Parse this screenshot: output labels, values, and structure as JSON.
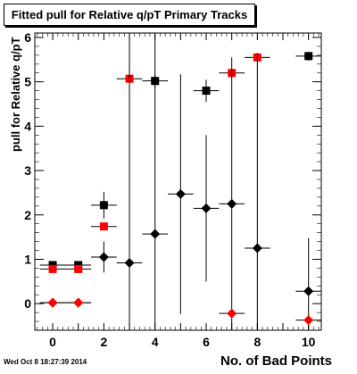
{
  "title": "Fitted pull for Relative q/pT Primary Tracks",
  "timestamp": "Wed Oct  8 18:27:39 2014",
  "chart_data": {
    "type": "scatter",
    "title": "Fitted pull for Relative q/pT Primary Tracks",
    "xlabel": "No. of Bad Points",
    "ylabel": "pull for Relative q/pT",
    "xlim": [
      -0.7,
      10.5
    ],
    "ylim": [
      -0.6,
      6.1
    ],
    "x_ticks": [
      0,
      2,
      4,
      6,
      8,
      10
    ],
    "y_ticks": [
      0,
      1,
      2,
      3,
      4,
      5,
      6
    ],
    "grid": false,
    "legend": "none",
    "series": [
      {
        "color": "#000000",
        "marker": "square",
        "points": [
          {
            "x": 0,
            "y": 0.87,
            "err": 0.05
          },
          {
            "x": 1,
            "y": 0.87,
            "err": 0.05
          },
          {
            "x": 2,
            "y": 2.22,
            "err": 0.3
          },
          {
            "x": 4,
            "y": 5.02,
            "err": 0.15
          },
          {
            "x": 6,
            "y": 4.8,
            "err": 0.25
          },
          {
            "x": 10,
            "y": 5.58,
            "err": 0.1
          }
        ]
      },
      {
        "color": "#ff0000",
        "marker": "square",
        "points": [
          {
            "x": 0,
            "y": 0.78,
            "err": 0.05
          },
          {
            "x": 1,
            "y": 0.78,
            "err": 0.05
          },
          {
            "x": 2,
            "y": 1.74,
            "err": 0.05
          },
          {
            "x": 3,
            "y": 5.07,
            "err": 0.05
          },
          {
            "x": 7,
            "y": 5.2,
            "err": 0.05
          },
          {
            "x": 8,
            "y": 5.55,
            "err": 0.05
          }
        ]
      },
      {
        "color": "#000000",
        "marker": "diamond",
        "points": [
          {
            "x": 0,
            "y": 0.02,
            "err": 0.02
          },
          {
            "x": 1,
            "y": 0.02,
            "err": 0.02
          },
          {
            "x": 2,
            "y": 1.05,
            "err": 0.35
          },
          {
            "x": 3,
            "y": 0.92,
            "err": 5.2
          },
          {
            "x": 4,
            "y": 1.57,
            "err": 4.6
          },
          {
            "x": 5,
            "y": 2.47,
            "err": 2.7
          },
          {
            "x": 6,
            "y": 2.15,
            "err": 1.65
          },
          {
            "x": 7,
            "y": 2.25,
            "err": 3.3
          },
          {
            "x": 8,
            "y": 1.25,
            "err": 4.4
          },
          {
            "x": 10,
            "y": 0.28,
            "err": 1.2
          }
        ]
      },
      {
        "color": "#ff0000",
        "marker": "diamond",
        "points": [
          {
            "x": 0,
            "y": 0.02,
            "err": 0.02
          },
          {
            "x": 1,
            "y": 0.02,
            "err": 0.02
          },
          {
            "x": 7,
            "y": -0.22,
            "err": 0.02
          },
          {
            "x": 10,
            "y": -0.37,
            "err": 0.02
          }
        ]
      }
    ]
  }
}
